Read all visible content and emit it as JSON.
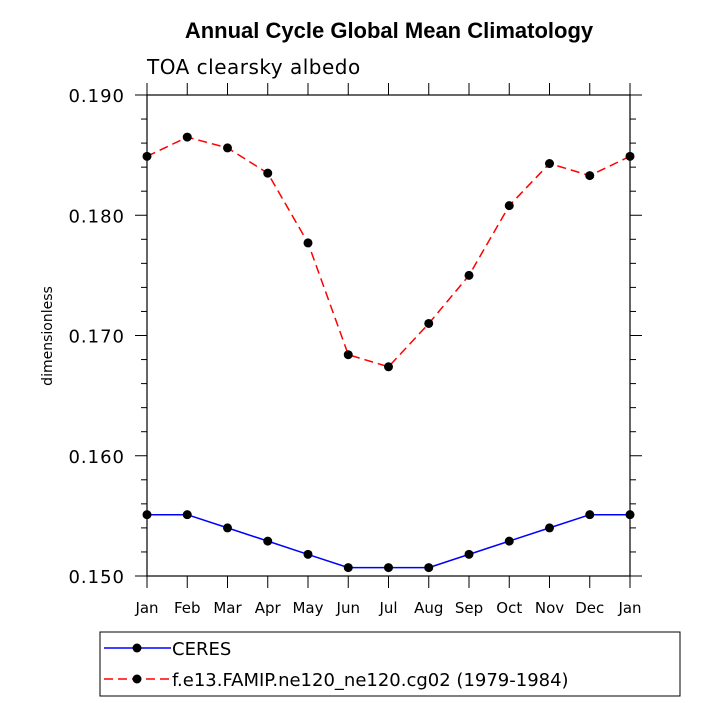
{
  "chart_data": {
    "type": "line",
    "title": "Annual Cycle Global Mean Climatology",
    "subtitle": "TOA clearsky albedo",
    "xlabel": "",
    "ylabel": "dimensionless",
    "categories": [
      "Jan",
      "Feb",
      "Mar",
      "Apr",
      "May",
      "Jun",
      "Jul",
      "Aug",
      "Sep",
      "Oct",
      "Nov",
      "Dec",
      "Jan"
    ],
    "ylim": [
      0.15,
      0.19
    ],
    "yticks": [
      0.15,
      0.16,
      0.17,
      0.18,
      0.19
    ],
    "ytick_labels": [
      "0.150",
      "0.160",
      "0.170",
      "0.180",
      "0.190"
    ],
    "grid": false,
    "legend_position": "bottom",
    "series": [
      {
        "name": "CERES",
        "color": "#0000ff",
        "dash": "solid",
        "marker": "circle",
        "values": [
          0.1551,
          0.1551,
          0.154,
          0.1529,
          0.1518,
          0.1507,
          0.1507,
          0.1507,
          0.1518,
          0.1529,
          0.154,
          0.1551,
          0.1551
        ]
      },
      {
        "name": "f.e13.FAMIP.ne120_ne120.cg02 (1979-1984)",
        "color": "#ff0000",
        "dash": "dashed",
        "marker": "circle",
        "values": [
          0.1849,
          0.1865,
          0.1856,
          0.1835,
          0.1777,
          0.1684,
          0.1674,
          0.171,
          0.175,
          0.1808,
          0.1843,
          0.1833,
          0.1849
        ]
      }
    ]
  }
}
